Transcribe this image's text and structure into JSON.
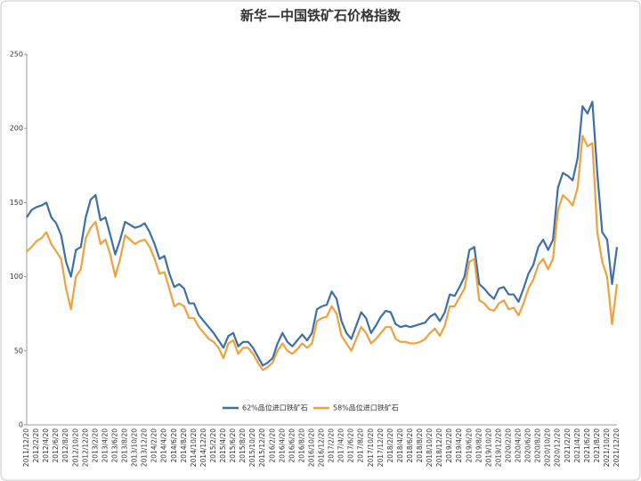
{
  "chart_data": {
    "type": "line",
    "title": "新华—中国铁矿石价格指数",
    "categories": [
      "2011/12/20",
      null,
      "2012/2/20",
      null,
      "2012/4/20",
      null,
      "2012/6/20",
      null,
      "2012/8/20",
      null,
      "2012/10/20",
      null,
      "2012/12/20",
      null,
      "2013/2/20",
      null,
      "2013/4/20",
      null,
      "2013/6/20",
      null,
      "2013/8/20",
      null,
      "2013/10/20",
      null,
      "2013/12/20",
      null,
      "2014/2/20",
      null,
      "2014/4/20",
      null,
      "2014/6/20",
      null,
      "2014/8/20",
      null,
      "2014/10/20",
      null,
      "2014/12/20",
      null,
      "2015/2/20",
      null,
      "2015/4/20",
      null,
      "2015/6/20",
      null,
      "2015/8/20",
      null,
      "2015/10/20",
      null,
      "2015/12/20",
      null,
      "2016/2/20",
      null,
      "2016/4/20",
      null,
      "2016/6/20",
      null,
      "2016/8/20",
      null,
      "2016/10/20",
      null,
      "2016/12/20",
      null,
      "2017/2/20",
      null,
      "2017/4/20",
      null,
      "2017/6/20",
      null,
      "2017/8/20",
      null,
      "2017/10/20",
      null,
      "2017/12/20",
      null,
      "2018/2/20",
      null,
      "2018/4/20",
      null,
      "2018/6/20",
      null,
      "2018/8/20",
      null,
      "2018/10/20",
      null,
      "2018/12/20",
      null,
      "2019/2/20",
      null,
      "2019/4/20",
      null,
      "2019/6/20",
      null,
      "2019/8/20",
      null,
      "2019/10/20",
      null,
      "2019/12/20",
      null,
      "2020/2/20",
      null,
      "2020/4/20",
      null,
      "2020/6/20",
      null,
      "2020/8/20",
      null,
      "2020/10/20",
      null,
      "2020/12/20",
      null,
      "2021/2/20",
      null,
      "2021/4/20",
      null,
      "2021/6/20",
      null,
      "2021/8/20",
      null,
      "2021/10/20",
      null,
      "2021/12/20"
    ],
    "series": [
      {
        "name": "62%品位进口铁矿石",
        "color": "#3d6fa8",
        "values": [
          140,
          145,
          147,
          148,
          150,
          140,
          136,
          128,
          110,
          100,
          118,
          120,
          140,
          152,
          155,
          138,
          140,
          128,
          115,
          125,
          137,
          135,
          133,
          134,
          136,
          130,
          122,
          112,
          114,
          102,
          93,
          95,
          92,
          82,
          82,
          74,
          70,
          66,
          62,
          57,
          52,
          60,
          62,
          53,
          56,
          56,
          52,
          46,
          40,
          42,
          45,
          55,
          62,
          56,
          53,
          57,
          61,
          57,
          62,
          78,
          80,
          81,
          90,
          85,
          70,
          62,
          58,
          67,
          76,
          72,
          62,
          67,
          73,
          77,
          76,
          68,
          66,
          67,
          66,
          67,
          68,
          69,
          73,
          75,
          70,
          76,
          88,
          87,
          93,
          100,
          118,
          120,
          95,
          92,
          88,
          85,
          92,
          93,
          88,
          88,
          83,
          92,
          102,
          108,
          120,
          125,
          118,
          125,
          160,
          170,
          168,
          165,
          180,
          215,
          210,
          218,
          170,
          130,
          125,
          95,
          120
        ]
      },
      {
        "name": "58%品位进口铁矿石",
        "color": "#f0a03c",
        "values": [
          117,
          120,
          124,
          126,
          130,
          122,
          117,
          112,
          92,
          78,
          100,
          105,
          126,
          133,
          137,
          122,
          125,
          115,
          100,
          112,
          128,
          125,
          122,
          124,
          125,
          120,
          112,
          102,
          103,
          92,
          80,
          82,
          80,
          72,
          72,
          66,
          62,
          58,
          56,
          52,
          45,
          55,
          57,
          48,
          52,
          52,
          48,
          42,
          37,
          39,
          42,
          50,
          55,
          50,
          48,
          51,
          55,
          52,
          55,
          70,
          72,
          73,
          80,
          75,
          60,
          55,
          50,
          58,
          66,
          62,
          55,
          58,
          62,
          66,
          66,
          58,
          56,
          56,
          55,
          55,
          56,
          58,
          62,
          65,
          60,
          67,
          80,
          80,
          86,
          92,
          110,
          112,
          84,
          82,
          78,
          77,
          82,
          84,
          78,
          79,
          74,
          82,
          92,
          98,
          108,
          112,
          105,
          112,
          145,
          155,
          152,
          148,
          160,
          195,
          188,
          190,
          130,
          110,
          100,
          68,
          95
        ]
      }
    ],
    "ylim": [
      0,
      250
    ],
    "yticks": [
      0,
      50,
      100,
      150,
      200,
      250
    ],
    "grid": false,
    "legend": "bottom"
  }
}
